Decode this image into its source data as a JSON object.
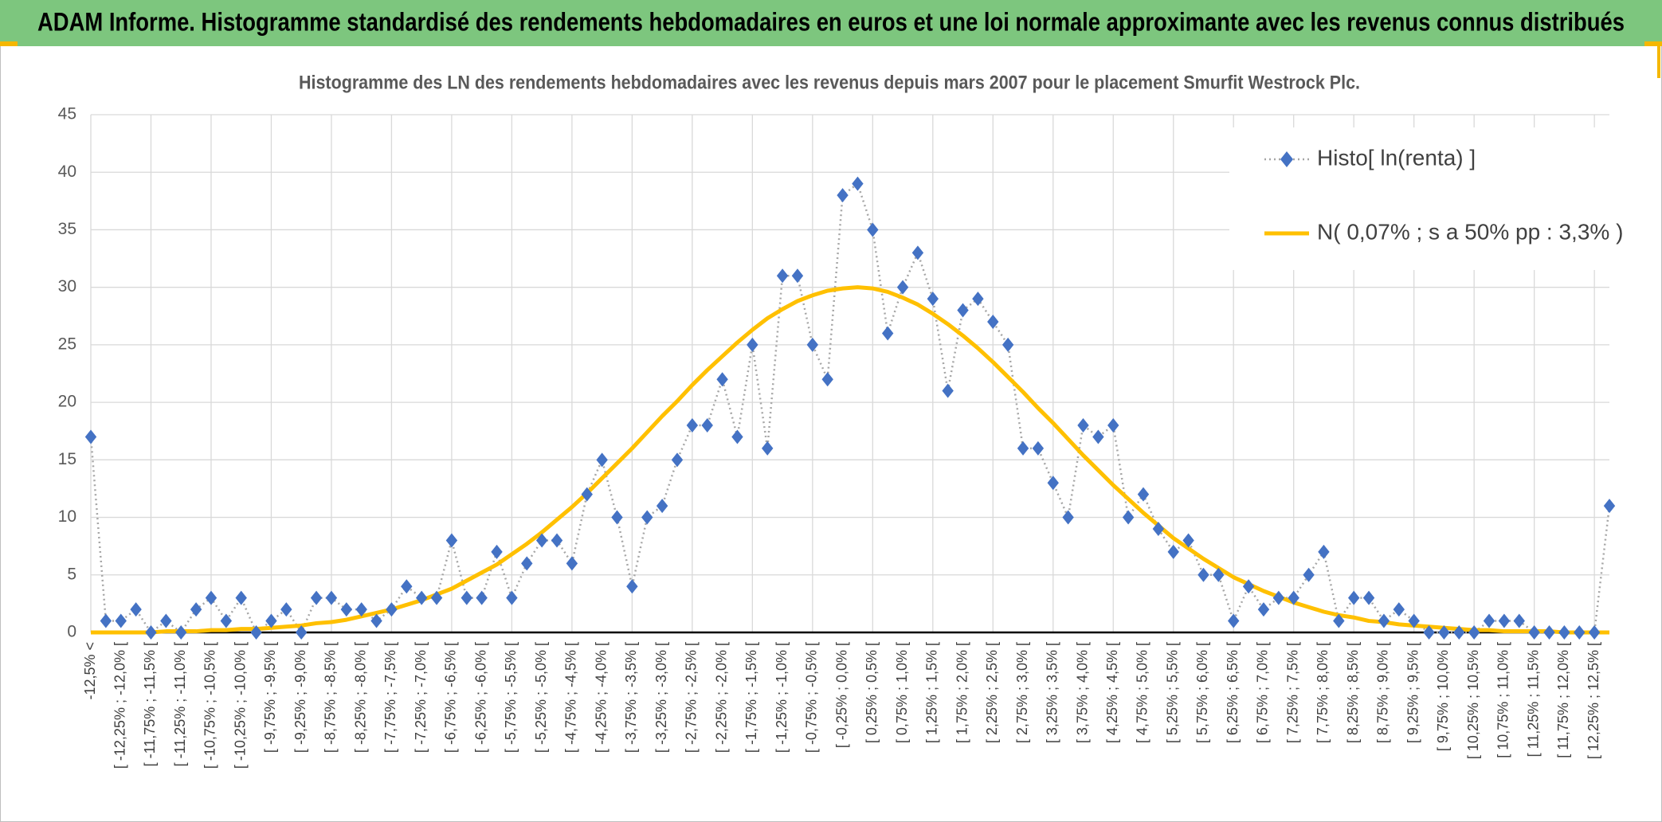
{
  "chart_data": {
    "type": "line",
    "title": "ADAM Informe. Histogramme standardisé des rendements hebdomadaires en euros et une loi normale approximante avec les revenus connus distribués",
    "subtitle": "Histogramme des LN des rendements hebdomadaires avec les revenus depuis mars 2007 pour le placement Smurfit Westrock Plc.",
    "categories": [
      "-12,5% <",
      null,
      "[ -12,25% ; -12,0% [",
      null,
      "[ -11,75% ; -11,5% [",
      null,
      "[ -11,25% ; -11,0% [",
      null,
      "[ -10,75% ; -10,5% [",
      null,
      "[ -10,25% ; -10,0% [",
      null,
      "[ -9,75% ; -9,5% [",
      null,
      "[ -9,25% ; -9,0% [",
      null,
      "[ -8,75% ; -8,5% [",
      null,
      "[ -8,25% ; -8,0% [",
      null,
      "[ -7,75% ; -7,5% [",
      null,
      "[ -7,25% ; -7,0% [",
      null,
      "[ -6,75% ; -6,5% [",
      null,
      "[ -6,25% ; -6,0% [",
      null,
      "[ -5,75% ; -5,5% [",
      null,
      "[ -5,25% ; -5,0% [",
      null,
      "[ -4,75% ; -4,5% [",
      null,
      "[ -4,25% ; -4,0% [",
      null,
      "[ -3,75% ; -3,5% [",
      null,
      "[ -3,25% ; -3,0% [",
      null,
      "[ -2,75% ; -2,5% [",
      null,
      "[ -2,25% ; -2,0% [",
      null,
      "[ -1,75% ; -1,5% [",
      null,
      "[ -1,25% ; -1,0% [",
      null,
      "[ -0,75% ; -0,5% [",
      null,
      "[ -0,25% ; 0,0% [",
      null,
      "[ 0,25% ; 0,5% [",
      null,
      "[ 0,75% ; 1,0% [",
      null,
      "[ 1,25% ; 1,5% [",
      null,
      "[ 1,75% ; 2,0% [",
      null,
      "[ 2,25% ; 2,5% [",
      null,
      "[ 2,75% ; 3,0% [",
      null,
      "[ 3,25% ; 3,5% [",
      null,
      "[ 3,75% ; 4,0% [",
      null,
      "[ 4,25% ; 4,5% [",
      null,
      "[ 4,75% ; 5,0% [",
      null,
      "[ 5,25% ; 5,5% [",
      null,
      "[ 5,75% ; 6,0% [",
      null,
      "[ 6,25% ; 6,5% [",
      null,
      "[ 6,75% ; 7,0% [",
      null,
      "[ 7,25% ; 7,5% [",
      null,
      "[ 7,75% ; 8,0% [",
      null,
      "[ 8,25% ; 8,5% [",
      null,
      "[ 8,75% ; 9,0% [",
      null,
      "[ 9,25% ; 9,5% [",
      null,
      "[ 9,75% ; 10,0% [",
      null,
      "[ 10,25% ; 10,5% [",
      null,
      "[ 10,75% ; 11,0% [",
      null,
      "[ 11,25% ; 11,5% [",
      null,
      "[ 11,75% ; 12,0% [",
      null,
      "[ 12,25% ; 12,5% [",
      null
    ],
    "series": [
      {
        "name": "Histo[ ln(renta) ]",
        "color": "#4472c4",
        "line_color": "#a6a6a6",
        "values": [
          17,
          1,
          1,
          2,
          0,
          1,
          0,
          2,
          3,
          1,
          3,
          0,
          1,
          2,
          0,
          3,
          3,
          2,
          2,
          1,
          2,
          4,
          3,
          3,
          8,
          3,
          3,
          7,
          3,
          6,
          8,
          8,
          6,
          12,
          15,
          10,
          4,
          10,
          11,
          15,
          18,
          18,
          22,
          17,
          25,
          16,
          31,
          31,
          25,
          22,
          38,
          39,
          35,
          26,
          30,
          33,
          29,
          21,
          28,
          29,
          27,
          25,
          16,
          16,
          13,
          10,
          18,
          17,
          18,
          10,
          12,
          9,
          7,
          8,
          5,
          5,
          1,
          4,
          2,
          3,
          3,
          5,
          7,
          1,
          3,
          3,
          1,
          2,
          1,
          0,
          0,
          0,
          0,
          1,
          1,
          1,
          0,
          0,
          0,
          0,
          0,
          11
        ]
      },
      {
        "name": "N( 0,07% ; s a 50% pp : 3,3% )",
        "color": "#ffc000",
        "values": [
          0.0,
          0.0,
          0.0,
          0.0,
          0.0,
          0.1,
          0.1,
          0.1,
          0.2,
          0.2,
          0.3,
          0.3,
          0.4,
          0.5,
          0.6,
          0.8,
          0.9,
          1.1,
          1.4,
          1.7,
          2.0,
          2.4,
          2.8,
          3.3,
          3.8,
          4.5,
          5.2,
          5.9,
          6.8,
          7.7,
          8.7,
          9.8,
          10.9,
          12.1,
          13.4,
          14.7,
          16.0,
          17.4,
          18.8,
          20.1,
          21.5,
          22.8,
          24.0,
          25.2,
          26.3,
          27.3,
          28.1,
          28.8,
          29.3,
          29.7,
          29.9,
          30.0,
          29.9,
          29.6,
          29.1,
          28.5,
          27.7,
          26.8,
          25.8,
          24.7,
          23.5,
          22.2,
          20.9,
          19.5,
          18.2,
          16.8,
          15.4,
          14.1,
          12.8,
          11.6,
          10.4,
          9.3,
          8.2,
          7.3,
          6.4,
          5.6,
          4.8,
          4.2,
          3.6,
          3.1,
          2.6,
          2.2,
          1.8,
          1.5,
          1.3,
          1.0,
          0.9,
          0.7,
          0.6,
          0.5,
          0.4,
          0.3,
          0.2,
          0.2,
          0.1,
          0.1,
          0.1,
          0.1,
          0.0,
          0.0,
          0.0,
          0.0
        ]
      }
    ],
    "ylim": [
      0,
      45
    ],
    "yticks": [
      0,
      5,
      10,
      15,
      20,
      25,
      30,
      35,
      40,
      45
    ],
    "grid": true,
    "legend": "upper right"
  }
}
